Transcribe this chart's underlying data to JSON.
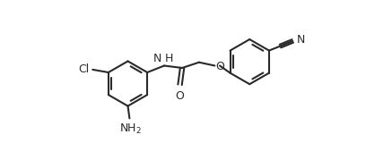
{
  "bg": "#ffffff",
  "lc": "#2a2a2a",
  "lw": 1.5,
  "fs": 9.0,
  "figsize": [
    4.37,
    1.79
  ],
  "dpi": 100,
  "xlim": [
    -0.3,
    4.7
  ],
  "ylim": [
    -0.85,
    1.35
  ]
}
